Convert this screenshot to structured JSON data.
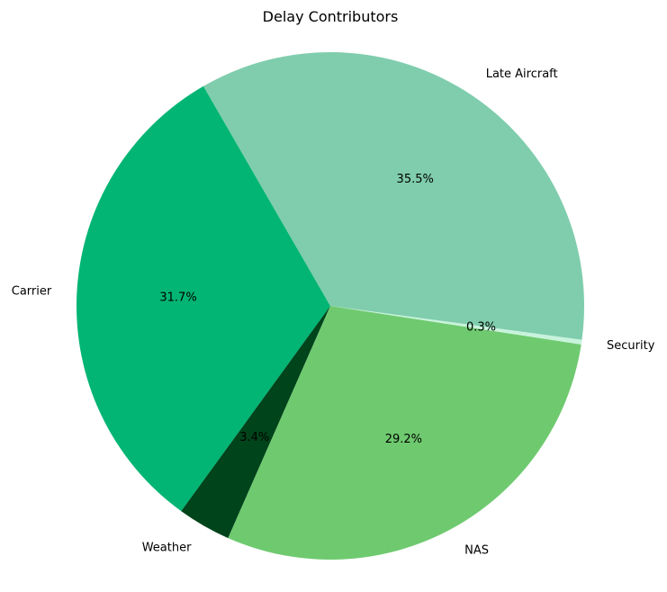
{
  "chart_data": {
    "type": "pie",
    "title": "Delay Contributors",
    "slices": [
      {
        "label": "Carrier",
        "percent": 31.7,
        "pct_label": "31.7%",
        "color": "#02b574"
      },
      {
        "label": "Weather",
        "percent": 3.4,
        "pct_label": "3.4%",
        "color": "#00441b"
      },
      {
        "label": "NAS",
        "percent": 29.2,
        "pct_label": "29.2%",
        "color": "#6fca6f"
      },
      {
        "label": "Security",
        "percent": 0.3,
        "pct_label": "0.3%",
        "color": "#c7f3dc"
      },
      {
        "label": "Late Aircraft",
        "percent": 35.5,
        "pct_label": "35.5%",
        "color": "#7fcdad"
      }
    ],
    "start_angle_deg": 120,
    "direction": "counterclockwise",
    "legend": "none"
  }
}
